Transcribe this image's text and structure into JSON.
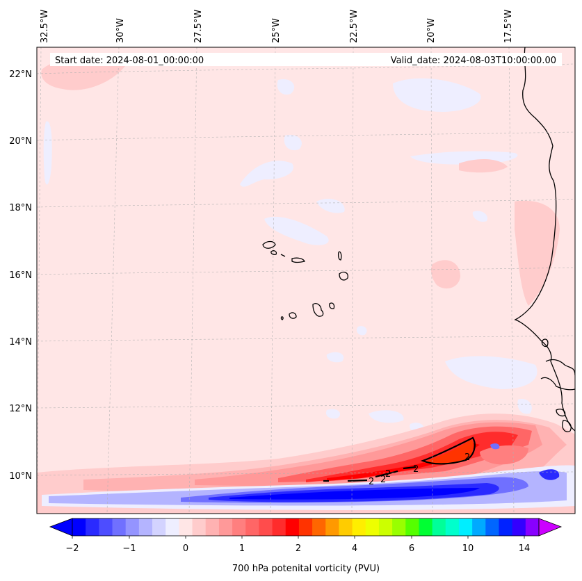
{
  "header": {
    "start_date": "Start date: 2024-08-01_00:00:00",
    "valid_date": "Valid_date: 2024-08-03T10:00:00.00"
  },
  "map": {
    "lon_labels": [
      "32.5°W",
      "30°W",
      "27.5°W",
      "25°W",
      "22.5°W",
      "20°W",
      "17.5°W"
    ],
    "lat_labels": [
      "22°N",
      "20°N",
      "18°N",
      "16°N",
      "14°N",
      "12°N",
      "10°N"
    ],
    "contour_labels": [
      "2",
      "2",
      "2",
      "2",
      "2"
    ]
  },
  "colorbar": {
    "title": "700 hPa potenital vorticity (PVU)",
    "tick_labels": [
      "−2",
      "−1",
      "0",
      "1",
      "2",
      "4",
      "6",
      "10",
      "14"
    ],
    "colors": [
      "#0000ff",
      "#2a2aff",
      "#4d4dff",
      "#7070ff",
      "#9494ff",
      "#b4b4ff",
      "#d3d3ff",
      "#eeeeff",
      "#ffe6e6",
      "#ffcccc",
      "#ffb2b2",
      "#ff9999",
      "#ff7f7f",
      "#ff6666",
      "#ff4c4c",
      "#ff2c2c",
      "#ff0000",
      "#ff3300",
      "#ff6600",
      "#ff9900",
      "#ffcc00",
      "#ffee00",
      "#eeff00",
      "#ccff00",
      "#99ff00",
      "#55ff00",
      "#00ff33",
      "#00ff99",
      "#00ffcc",
      "#00eeff",
      "#00aaff",
      "#0066ff",
      "#0022ff",
      "#3300ff",
      "#8800ff"
    ],
    "under_color": "#0000ff",
    "over_color": "#cc00ff"
  }
}
